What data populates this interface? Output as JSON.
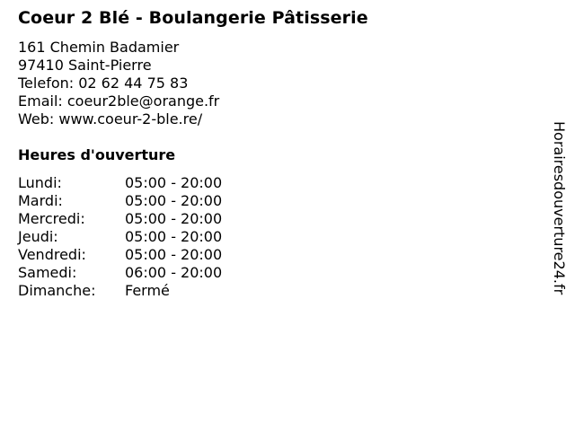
{
  "business": {
    "title": "Coeur 2 Blé - Boulangerie Pâtisserie",
    "address_line1": "161 Chemin Badamier",
    "address_line2": "97410 Saint-Pierre",
    "phone_label": "Telefon:",
    "phone": "02 62 44 75 83",
    "email_label": "Email:",
    "email": "coeur2ble@orange.fr",
    "web_label": "Web:",
    "web": "www.coeur-2-ble.re/"
  },
  "hours": {
    "title": "Heures d'ouverture",
    "rows": [
      {
        "day": "Lundi:",
        "time": "05:00 - 20:00"
      },
      {
        "day": "Mardi:",
        "time": "05:00 - 20:00"
      },
      {
        "day": "Mercredi:",
        "time": "05:00 - 20:00"
      },
      {
        "day": "Jeudi:",
        "time": "05:00 - 20:00"
      },
      {
        "day": "Vendredi:",
        "time": "05:00 - 20:00"
      },
      {
        "day": "Samedi:",
        "time": "06:00 - 20:00"
      },
      {
        "day": "Dimanche:",
        "time": "Fermé"
      }
    ]
  },
  "watermark": "Horairesdouverture24.fr"
}
